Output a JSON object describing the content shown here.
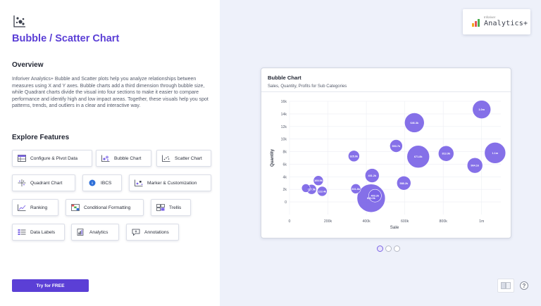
{
  "page": {
    "title": "Bubble / Scatter Chart",
    "overview_heading": "Overview",
    "overview_text": "Inforiver Analytics+ Bubble and Scatter plots help you analyze relationships between measures using X and Y axes. Bubble charts add a third dimension through bubble size, while Quadrant charts divide the visual into four sections to make it easier to compare performance and identify high and low impact areas. Together, these visuals help you spot patterns, trends, and outliers in a clear and interactive way.",
    "explore_heading": "Explore Features",
    "try_button": "Try for FREE"
  },
  "features": [
    {
      "label": "Configure & Pivot Data",
      "icon": "pivot-table-icon"
    },
    {
      "label": "Bubble Chart",
      "icon": "bubble-chart-icon"
    },
    {
      "label": "Scatter Chart",
      "icon": "scatter-chart-icon"
    },
    {
      "label": "Quadrant Chart",
      "icon": "quadrant-chart-icon"
    },
    {
      "label": "IBCS",
      "icon": "ibcs-icon"
    },
    {
      "label": "Marker & Customization",
      "icon": "marker-icon"
    },
    {
      "label": "Ranking",
      "icon": "ranking-icon"
    },
    {
      "label": "Conditional Formatting",
      "icon": "conditional-formatting-icon"
    },
    {
      "label": "Trellis",
      "icon": "trellis-icon"
    },
    {
      "label": "Data Labels",
      "icon": "data-labels-icon"
    },
    {
      "label": "Analytics",
      "icon": "analytics-icon"
    },
    {
      "label": "Annotations",
      "icon": "annotations-icon"
    }
  ],
  "logo": {
    "small": "Inforiver",
    "main": "Analytics+"
  },
  "colors": {
    "accent": "#5b3fd6",
    "bubble": "#7b64e6",
    "panel_bg": "#eef1fa"
  },
  "card": {
    "title": "Bubble Chart",
    "subtitle": "Sales, Quantity, Profits for Sub Categories"
  },
  "chart_data": {
    "type": "scatter",
    "variant": "bubble",
    "xlabel": "Sale",
    "ylabel": "Quantity",
    "xlim": [
      0,
      1100000
    ],
    "ylim": [
      -2000,
      16000
    ],
    "x_ticks": [
      0,
      200000,
      400000,
      600000,
      800000,
      1000000
    ],
    "x_tick_labels": [
      "0",
      "200k",
      "400k",
      "600k",
      "800k",
      "1m"
    ],
    "y_ticks": [
      0,
      2000,
      4000,
      6000,
      8000,
      10000,
      12000,
      14000,
      16000
    ],
    "y_tick_labels": [
      "0",
      "2k",
      "4k",
      "6k",
      "8k",
      "10k",
      "12k",
      "14k",
      "16k"
    ],
    "grid": true,
    "points": [
      {
        "x": 85000,
        "y": 2200,
        "size": 6,
        "label": ""
      },
      {
        "x": 115000,
        "y": 2000,
        "size": 7,
        "label": "117.5k"
      },
      {
        "x": 150000,
        "y": 3400,
        "size": 7,
        "label": "169.9k"
      },
      {
        "x": 170000,
        "y": 1700,
        "size": 7,
        "label": "113.4k"
      },
      {
        "x": 335000,
        "y": 7300,
        "size": 8,
        "label": "325.0k"
      },
      {
        "x": 345000,
        "y": 2100,
        "size": 7,
        "label": "331.8k"
      },
      {
        "x": 425000,
        "y": 600,
        "size": 20,
        "label": "826.0k"
      },
      {
        "x": 445000,
        "y": 1000,
        "size": 9,
        "label": "403.2k"
      },
      {
        "x": 430000,
        "y": 4200,
        "size": 10,
        "label": "431.2k"
      },
      {
        "x": 555000,
        "y": 8900,
        "size": 9,
        "label": "553.7k"
      },
      {
        "x": 595000,
        "y": 3000,
        "size": 10,
        "label": "588.2k"
      },
      {
        "x": 650000,
        "y": 12600,
        "size": 14,
        "label": "646.3k"
      },
      {
        "x": 670000,
        "y": 7200,
        "size": 16,
        "label": "671.8k"
      },
      {
        "x": 815000,
        "y": 7700,
        "size": 11,
        "label": "813.9k"
      },
      {
        "x": 965000,
        "y": 5800,
        "size": 11,
        "label": "964.1k"
      },
      {
        "x": 1000000,
        "y": 14700,
        "size": 13,
        "label": "1.0m"
      },
      {
        "x": 1070000,
        "y": 7800,
        "size": 15,
        "label": "1.1m"
      }
    ]
  },
  "pager": {
    "count": 3,
    "active": 0
  }
}
